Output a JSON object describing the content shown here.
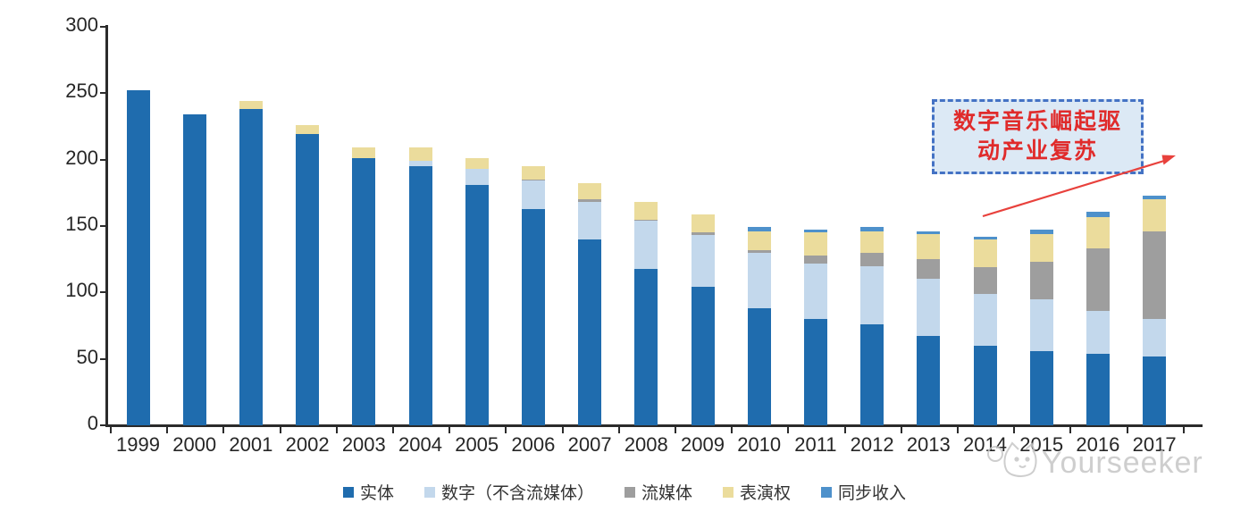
{
  "chart_data": {
    "type": "bar",
    "stacked": true,
    "title": "",
    "xlabel": "",
    "ylabel": "",
    "ylim": [
      0,
      300
    ],
    "yticks": [
      0,
      50,
      100,
      150,
      200,
      250,
      300
    ],
    "grid": false,
    "legend_position": "bottom",
    "categories": [
      "1999",
      "2000",
      "2001",
      "2002",
      "2003",
      "2004",
      "2005",
      "2006",
      "2007",
      "2008",
      "2009",
      "2010",
      "2011",
      "2012",
      "2013",
      "2014",
      "2015",
      "2016",
      "2017"
    ],
    "series": [
      {
        "name": "实体",
        "color": "#1F6CAE",
        "values": [
          252,
          234,
          238,
          219,
          201,
          195,
          181,
          163,
          140,
          118,
          104,
          88,
          80,
          76,
          67,
          60,
          56,
          54,
          52
        ]
      },
      {
        "name": "数字（不含流媒体）",
        "color": "#C3D8EC",
        "values": [
          0,
          0,
          0,
          0,
          0,
          4,
          12,
          21,
          28,
          36,
          39,
          42,
          42,
          44,
          43,
          39,
          39,
          32,
          28
        ]
      },
      {
        "name": "流媒体",
        "color": "#9E9E9E",
        "values": [
          0,
          0,
          0,
          0,
          0,
          0,
          0,
          1,
          2,
          1,
          2,
          2,
          6,
          10,
          15,
          20,
          28,
          47,
          66
        ]
      },
      {
        "name": "表演权",
        "color": "#EBDC9C",
        "values": [
          0,
          0,
          6,
          7,
          8,
          10,
          8,
          10,
          12,
          13,
          14,
          14,
          17,
          16,
          19,
          21,
          21,
          24,
          24
        ]
      },
      {
        "name": "同步收入",
        "color": "#4E91CB",
        "values": [
          0,
          0,
          0,
          0,
          0,
          0,
          0,
          0,
          0,
          0,
          0,
          3,
          2,
          3,
          2,
          2,
          3,
          4,
          3
        ]
      }
    ]
  },
  "annotation": {
    "line1": "数字音乐崛起驱",
    "line2": "动产业复苏",
    "box_fill": "#DCE9F5",
    "box_border_color": "#4472C4",
    "text_color": "#E02B2B",
    "arrow_color": "#E8413C"
  },
  "watermark": {
    "text": "Yourseeker",
    "color": "#C6C6C6"
  },
  "colors": {
    "axis": "#2B2B2B",
    "background": "#FFFFFF"
  }
}
